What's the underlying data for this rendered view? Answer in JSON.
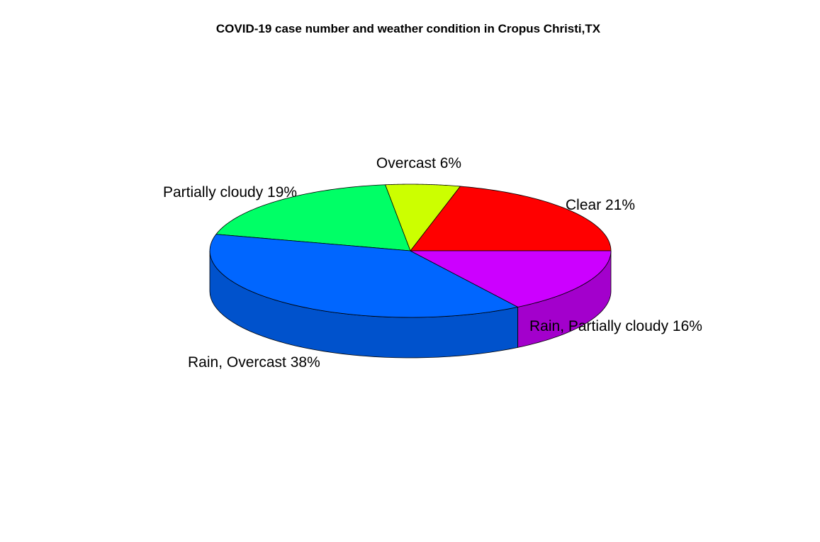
{
  "chart_data": {
    "type": "pie",
    "style": "3d",
    "title": "COVID-19 case number and weather condition in Cropus Christi,TX",
    "slices": [
      {
        "label": "Clear 21%",
        "category": "Clear",
        "value": 21,
        "color": "#FF0000",
        "side_color": "#CC0000"
      },
      {
        "label": "Overcast 6%",
        "category": "Overcast",
        "value": 6,
        "color": "#CCFF00",
        "side_color": "#A3CC00"
      },
      {
        "label": "Partially cloudy 19%",
        "category": "Partially cloudy",
        "value": 19,
        "color": "#00FF66",
        "side_color": "#00CC52"
      },
      {
        "label": "Rain, Overcast 38%",
        "category": "Rain, Overcast",
        "value": 38,
        "color": "#0066FF",
        "side_color": "#0052CC"
      },
      {
        "label": "Rain, Partially cloudy 16%",
        "category": "Rain, Partially cloudy",
        "value": 16,
        "color": "#CC00FF",
        "side_color": "#A300CC"
      }
    ]
  }
}
